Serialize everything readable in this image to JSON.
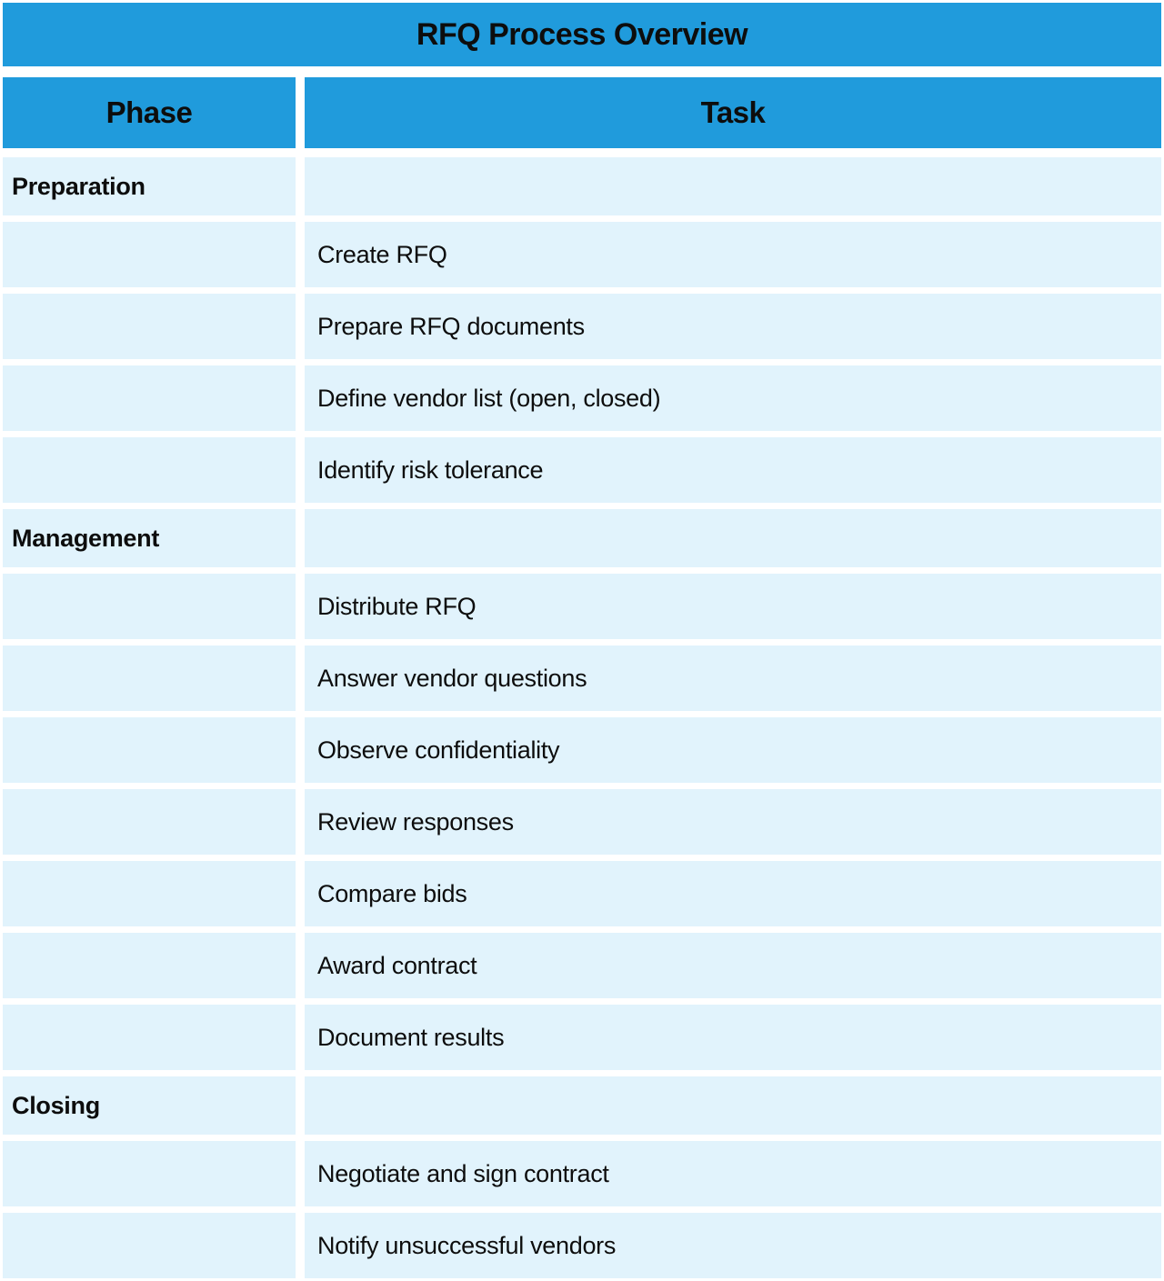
{
  "title": "RFQ Process Overview",
  "columns": {
    "phase": "Phase",
    "task": "Task"
  },
  "colors": {
    "header_blue": "#209BDC",
    "row_light_blue": "#E1F3FC",
    "text": "#0d0d0d",
    "background": "#ffffff"
  },
  "rows": [
    {
      "type": "phase",
      "phase": "Preparation",
      "task": ""
    },
    {
      "type": "task",
      "phase": "",
      "task": "Create RFQ"
    },
    {
      "type": "task",
      "phase": "",
      "task": "Prepare RFQ documents"
    },
    {
      "type": "task",
      "phase": "",
      "task": "Define vendor list (open, closed)"
    },
    {
      "type": "task",
      "phase": "",
      "task": "Identify risk tolerance"
    },
    {
      "type": "phase",
      "phase": "Management",
      "task": ""
    },
    {
      "type": "task",
      "phase": "",
      "task": "Distribute RFQ"
    },
    {
      "type": "task",
      "phase": "",
      "task": "Answer vendor questions"
    },
    {
      "type": "task",
      "phase": "",
      "task": "Observe confidentiality"
    },
    {
      "type": "task",
      "phase": "",
      "task": "Review responses"
    },
    {
      "type": "task",
      "phase": "",
      "task": "Compare bids"
    },
    {
      "type": "task",
      "phase": "",
      "task": "Award contract"
    },
    {
      "type": "task",
      "phase": "",
      "task": "Document results"
    },
    {
      "type": "phase",
      "phase": "Closing",
      "task": ""
    },
    {
      "type": "task",
      "phase": "",
      "task": "Negotiate and sign contract"
    },
    {
      "type": "task",
      "phase": "",
      "task": "Notify unsuccessful vendors"
    }
  ]
}
